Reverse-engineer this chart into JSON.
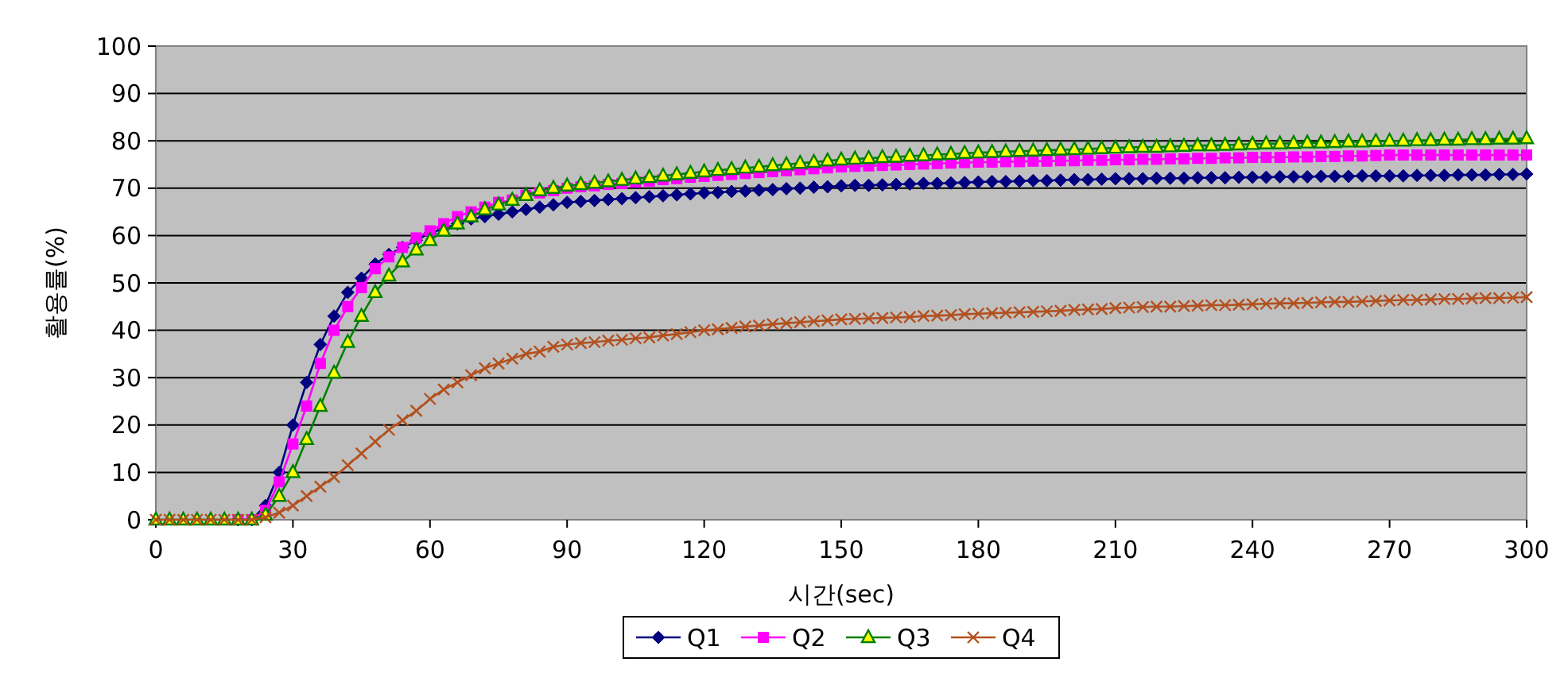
{
  "chart_data": {
    "type": "line",
    "xlabel": "시간(sec)",
    "ylabel": "활용률(%)",
    "xlim": [
      0,
      300
    ],
    "xticks": [
      0,
      30,
      60,
      90,
      120,
      150,
      180,
      210,
      240,
      270,
      300
    ],
    "ylim": [
      0,
      100
    ],
    "yticks": [
      0,
      10,
      20,
      30,
      40,
      50,
      60,
      70,
      80,
      90,
      100
    ],
    "grid": "y",
    "legend": "bottom",
    "x": [
      0,
      3,
      6,
      9,
      12,
      15,
      18,
      21,
      24,
      27,
      30,
      33,
      36,
      39,
      42,
      45,
      48,
      51,
      54,
      57,
      60,
      63,
      66,
      69,
      72,
      75,
      78,
      81,
      84,
      87,
      90,
      93,
      96,
      99,
      102,
      105,
      108,
      111,
      114,
      117,
      120,
      123,
      126,
      129,
      132,
      135,
      138,
      141,
      144,
      147,
      150,
      153,
      156,
      159,
      162,
      165,
      168,
      171,
      174,
      177,
      180,
      183,
      186,
      189,
      192,
      195,
      198,
      201,
      204,
      207,
      210,
      213,
      216,
      219,
      222,
      225,
      228,
      231,
      234,
      237,
      240,
      243,
      246,
      249,
      252,
      255,
      258,
      261,
      264,
      267,
      270,
      273,
      276,
      279,
      282,
      285,
      288,
      291,
      294,
      297,
      300
    ],
    "series": [
      {
        "name": "Q1",
        "color": "#000080",
        "marker": "diamond",
        "values": [
          null,
          null,
          null,
          null,
          null,
          null,
          0,
          0,
          3,
          10,
          20,
          29,
          37,
          43,
          48,
          51,
          54,
          56,
          57.5,
          59,
          60.5,
          61.5,
          62.5,
          63.5,
          64,
          64.5,
          65,
          65.5,
          66,
          66.5,
          67,
          67.2,
          67.4,
          67.6,
          67.8,
          68,
          68.2,
          68.4,
          68.6,
          68.8,
          69,
          69.1,
          69.3,
          69.4,
          69.6,
          69.7,
          69.9,
          70,
          70.2,
          70.3,
          70.5,
          70.6,
          70.6,
          70.7,
          70.8,
          70.9,
          71,
          71,
          71.1,
          71.2,
          71.3,
          71.4,
          71.4,
          71.5,
          71.6,
          71.6,
          71.7,
          71.8,
          71.8,
          71.9,
          72,
          72,
          72,
          72.1,
          72.1,
          72.1,
          72.2,
          72.2,
          72.2,
          72.3,
          72.3,
          72.3,
          72.4,
          72.4,
          72.4,
          72.5,
          72.5,
          72.5,
          72.6,
          72.6,
          72.6,
          72.6,
          72.7,
          72.7,
          72.7,
          72.8,
          72.8,
          72.8,
          72.9,
          72.9,
          73
        ]
      },
      {
        "name": "Q2",
        "color": "#ff00ff",
        "marker": "square",
        "values": [
          null,
          null,
          null,
          null,
          null,
          null,
          0,
          0,
          2,
          8,
          16,
          24,
          33,
          40,
          45,
          49,
          53,
          55.5,
          57.5,
          59.5,
          61,
          62.5,
          64,
          65,
          66,
          67,
          67.5,
          68.5,
          69,
          69.5,
          70,
          70.3,
          70.5,
          70.8,
          71,
          71.3,
          71.5,
          71.8,
          72,
          72.3,
          72.5,
          72.7,
          72.9,
          73.1,
          73.3,
          73.5,
          73.7,
          73.9,
          74.1,
          74.3,
          74.5,
          74.6,
          74.7,
          74.8,
          74.9,
          75,
          75.1,
          75.2,
          75.3,
          75.4,
          75.5,
          75.5,
          75.6,
          75.6,
          75.7,
          75.7,
          75.8,
          75.8,
          75.9,
          75.9,
          76,
          76,
          76.1,
          76.1,
          76.2,
          76.2,
          76.3,
          76.3,
          76.4,
          76.4,
          76.5,
          76.5,
          76.5,
          76.6,
          76.6,
          76.7,
          76.7,
          76.8,
          76.8,
          76.9,
          77,
          77,
          77,
          77,
          77,
          77,
          77,
          77,
          77,
          77,
          77
        ]
      },
      {
        "name": "Q3",
        "color": "#008000",
        "marker": "triangle",
        "values": [
          0,
          0,
          0,
          0,
          0,
          0,
          0,
          0,
          1,
          5,
          10,
          17,
          24,
          31,
          37.5,
          43,
          48,
          51.5,
          54.5,
          57,
          59,
          61,
          62.5,
          64,
          65.5,
          66.5,
          67.5,
          68.5,
          69.5,
          70,
          70.5,
          70.8,
          71.1,
          71.4,
          71.7,
          72,
          72.3,
          72.6,
          72.9,
          73.2,
          73.5,
          73.8,
          74,
          74.3,
          74.5,
          74.8,
          75,
          75.3,
          75.5,
          75.8,
          76,
          76.2,
          76.3,
          76.5,
          76.6,
          76.8,
          76.9,
          77.1,
          77.2,
          77.4,
          77.5,
          77.6,
          77.7,
          77.8,
          77.9,
          78,
          78.1,
          78.2,
          78.3,
          78.4,
          78.5,
          78.6,
          78.7,
          78.7,
          78.8,
          78.9,
          79,
          79,
          79.1,
          79.2,
          79.3,
          79.4,
          79.4,
          79.5,
          79.6,
          79.6,
          79.7,
          79.8,
          79.8,
          79.9,
          80,
          80,
          80.1,
          80.1,
          80.2,
          80.2,
          80.3,
          80.3,
          80.4,
          80.4,
          80.5
        ]
      },
      {
        "name": "Q4",
        "color": "#b3501e",
        "marker": "cross",
        "values": [
          0,
          0,
          0,
          0,
          0,
          0,
          0,
          0,
          0.5,
          1.5,
          3,
          5,
          7,
          9,
          11.5,
          14,
          16.5,
          19,
          21,
          23,
          25.5,
          27.5,
          29,
          30.5,
          32,
          33,
          34,
          35,
          35.5,
          36.5,
          37,
          37.3,
          37.5,
          37.8,
          38,
          38.3,
          38.5,
          38.9,
          39.2,
          39.6,
          40,
          40.2,
          40.5,
          40.8,
          41,
          41.3,
          41.5,
          41.7,
          41.9,
          42.1,
          42.3,
          42.4,
          42.5,
          42.6,
          42.7,
          42.8,
          43,
          43.1,
          43.2,
          43.4,
          43.5,
          43.6,
          43.7,
          43.8,
          43.9,
          44,
          44.1,
          44.3,
          44.4,
          44.5,
          44.7,
          44.8,
          44.9,
          45,
          45,
          45.1,
          45.2,
          45.3,
          45.3,
          45.4,
          45.5,
          45.6,
          45.7,
          45.7,
          45.8,
          45.9,
          46,
          46,
          46.1,
          46.2,
          46.3,
          46.4,
          46.4,
          46.5,
          46.6,
          46.6,
          46.7,
          46.8,
          46.8,
          46.9,
          47
        ]
      }
    ]
  }
}
